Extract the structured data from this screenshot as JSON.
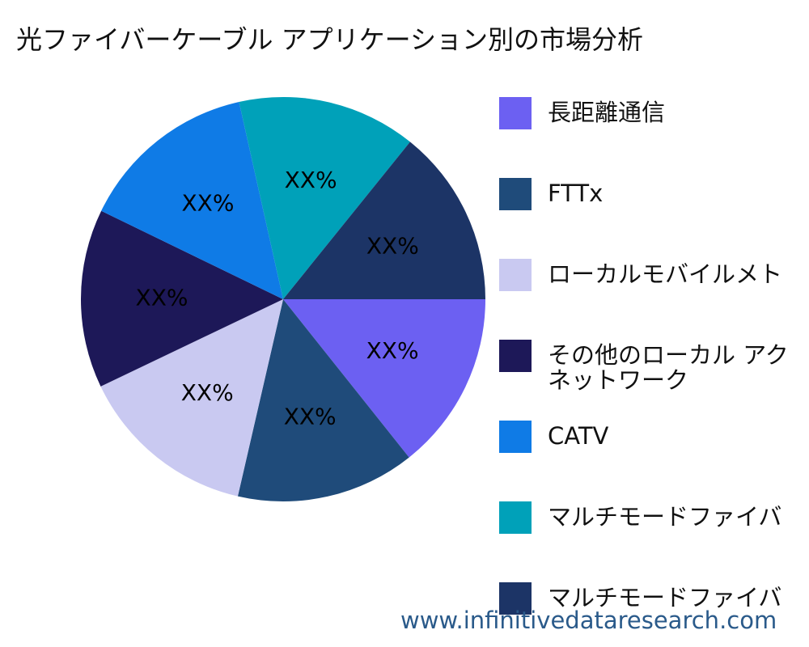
{
  "chart_data": {
    "type": "pie",
    "title": "光ファイバーケーブル アプリケーション別の市場分析",
    "categories": [
      "長距離通信",
      "FTTx",
      "ローカルモバイルメト",
      "その他のローカル アク\nネットワーク",
      "CATV",
      "マルチモードファイバ",
      "マルチモードファイバ"
    ],
    "values": [
      14.3,
      14.3,
      14.3,
      14.3,
      14.3,
      14.3,
      14.2
    ],
    "value_labels": [
      "XX%",
      "XX%",
      "XX%",
      "XX%",
      "XX%",
      "XX%",
      "XX%"
    ],
    "colors": [
      "#6c60f2",
      "#1f4b7a",
      "#c9c9f1",
      "#1d1858",
      "#0f7be6",
      "#00a1b9",
      "#1c3466"
    ],
    "watermark": "www.infinitivedataresearch.com"
  }
}
